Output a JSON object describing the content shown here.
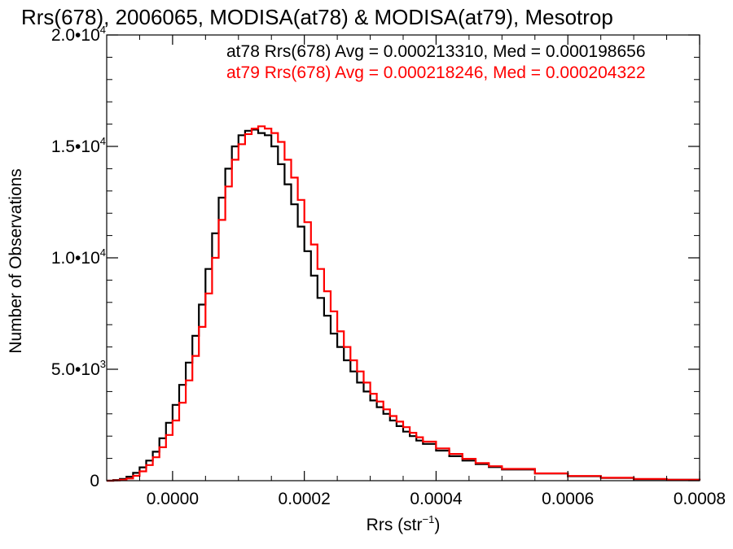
{
  "chart_data": {
    "type": "line",
    "title": "Rrs(678), 2006065, MODISA(at78) & MODISA(at79), Mesotrop",
    "xlabel_base": "Rrs (str",
    "xlabel_sup": "−1",
    "xlabel_end": ")",
    "ylabel": "Number of Observations",
    "xlim": [
      -0.0001,
      0.0008
    ],
    "ylim": [
      0,
      20000
    ],
    "x_ticks": [
      {
        "value": 0.0,
        "label": "0.0000"
      },
      {
        "value": 0.0002,
        "label": "0.0002"
      },
      {
        "value": 0.0004,
        "label": "0.0004"
      },
      {
        "value": 0.0006,
        "label": "0.0006"
      },
      {
        "value": 0.0008,
        "label": "0.0008"
      }
    ],
    "y_ticks": [
      {
        "value": 0,
        "base": "0",
        "exp": ""
      },
      {
        "value": 5000,
        "base": "5.0•10",
        "exp": "3"
      },
      {
        "value": 10000,
        "base": "1.0•10",
        "exp": "4"
      },
      {
        "value": 15000,
        "base": "1.5•10",
        "exp": "4"
      },
      {
        "value": 20000,
        "base": "2.0•10",
        "exp": "4"
      }
    ],
    "annotations": [
      {
        "text": "at78 Rrs(678) Avg = 0.000213310, Med = 0.000198656",
        "color": "#000000"
      },
      {
        "text": "at79 Rrs(678) Avg = 0.000218246, Med = 0.000204322",
        "color": "#ff0000"
      }
    ],
    "series": [
      {
        "color": "#000000",
        "x": [
          -0.0001,
          -9e-05,
          -8e-05,
          -7e-05,
          -6e-05,
          -5e-05,
          -4e-05,
          -3e-05,
          -2e-05,
          -1e-05,
          0.0,
          1e-05,
          2e-05,
          3e-05,
          4e-05,
          5e-05,
          6e-05,
          7e-05,
          8e-05,
          9e-05,
          0.0001,
          0.00011,
          0.00012,
          0.00013,
          0.00014,
          0.00015,
          0.00016,
          0.00017,
          0.00018,
          0.00019,
          0.0002,
          0.00021,
          0.00022,
          0.00023,
          0.00024,
          0.00025,
          0.00026,
          0.00027,
          0.00028,
          0.00029,
          0.0003,
          0.00031,
          0.00032,
          0.00033,
          0.00034,
          0.00035,
          0.00036,
          0.00037,
          0.00038,
          0.0004,
          0.00042,
          0.00044,
          0.00046,
          0.00048,
          0.0005,
          0.00055,
          0.0006,
          0.00065,
          0.0007,
          0.00075,
          0.0008
        ],
        "y": [
          0,
          30,
          80,
          180,
          350,
          600,
          900,
          1300,
          1900,
          2600,
          3400,
          4300,
          5300,
          6500,
          7900,
          9500,
          11100,
          12700,
          14000,
          15000,
          15500,
          15700,
          15750,
          15600,
          15500,
          15000,
          14200,
          13300,
          12400,
          11400,
          10300,
          9200,
          8200,
          7400,
          6600,
          6000,
          5400,
          4900,
          4400,
          4000,
          3600,
          3300,
          3000,
          2700,
          2450,
          2200,
          2000,
          1800,
          1650,
          1350,
          1100,
          900,
          740,
          610,
          500,
          320,
          200,
          120,
          70,
          40,
          20
        ]
      },
      {
        "color": "#ff0000",
        "x": [
          -0.0001,
          -9e-05,
          -8e-05,
          -7e-05,
          -6e-05,
          -5e-05,
          -4e-05,
          -3e-05,
          -2e-05,
          -1e-05,
          0.0,
          1e-05,
          2e-05,
          3e-05,
          4e-05,
          5e-05,
          6e-05,
          7e-05,
          8e-05,
          9e-05,
          0.0001,
          0.00011,
          0.00012,
          0.00013,
          0.00014,
          0.00015,
          0.00016,
          0.00017,
          0.00018,
          0.00019,
          0.0002,
          0.00021,
          0.00022,
          0.00023,
          0.00024,
          0.00025,
          0.00026,
          0.00027,
          0.00028,
          0.00029,
          0.0003,
          0.00031,
          0.00032,
          0.00033,
          0.00034,
          0.00035,
          0.00036,
          0.00037,
          0.00038,
          0.0004,
          0.00042,
          0.00044,
          0.00046,
          0.00048,
          0.0005,
          0.00055,
          0.0006,
          0.00065,
          0.0007,
          0.00075,
          0.0008
        ],
        "y": [
          0,
          10,
          40,
          100,
          220,
          420,
          700,
          1050,
          1500,
          2050,
          2700,
          3500,
          4500,
          5600,
          6900,
          8400,
          10000,
          11700,
          13200,
          14400,
          15100,
          15550,
          15800,
          15900,
          15800,
          15600,
          15200,
          14400,
          13600,
          12600,
          11600,
          10600,
          9500,
          8500,
          7600,
          6700,
          6000,
          5400,
          4900,
          4400,
          3900,
          3550,
          3200,
          2900,
          2650,
          2400,
          2150,
          1950,
          1750,
          1450,
          1200,
          980,
          790,
          650,
          530,
          330,
          210,
          130,
          80,
          45,
          20
        ]
      }
    ]
  }
}
